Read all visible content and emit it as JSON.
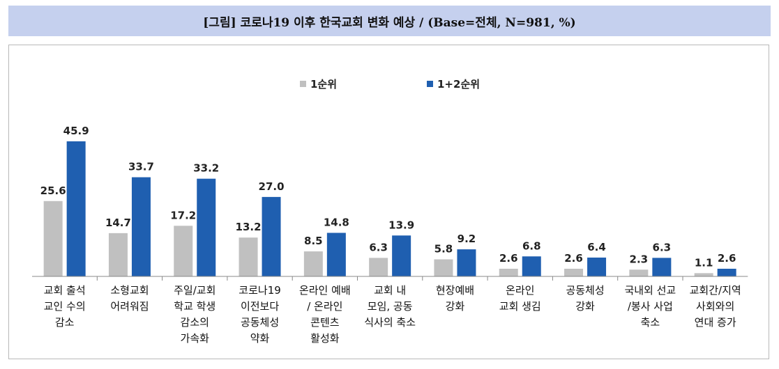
{
  "title": "[그림] 코로나19 이후 한국교회 변화 예상 / (Base=전체, N=981, %)",
  "chart_data": {
    "type": "bar",
    "categories": [
      [
        "교회 출석",
        "교인 수의",
        "감소"
      ],
      [
        "소형교회",
        "어려워짐"
      ],
      [
        "주일/교회",
        "학교 학생",
        "감소의",
        "가속화"
      ],
      [
        "코로나19",
        "이전보다",
        "공동체성",
        "약화"
      ],
      [
        "온라인 예배",
        "/ 온라인",
        "콘텐츠",
        "활성화"
      ],
      [
        "교회 내",
        "모임, 공동",
        "식사의 축소"
      ],
      [
        "현장예배",
        "강화"
      ],
      [
        "온라인",
        "교회 생김"
      ],
      [
        "공동체성",
        "강화"
      ],
      [
        "국내외 선교",
        "/봉사 사업",
        "축소"
      ],
      [
        "교회간/지역",
        "사회와의",
        "연대 증가"
      ]
    ],
    "series": [
      {
        "name": "1순위",
        "color": "#c0c0c0",
        "values": [
          25.6,
          14.7,
          17.2,
          13.2,
          8.5,
          6.3,
          5.8,
          2.6,
          2.6,
          2.3,
          1.1
        ]
      },
      {
        "name": "1+2순위",
        "color": "#1f5fb0",
        "values": [
          45.9,
          33.7,
          33.2,
          27.0,
          14.8,
          13.9,
          9.2,
          6.8,
          6.4,
          6.3,
          2.6
        ]
      }
    ],
    "ylim": [
      0,
      50
    ],
    "grid": false,
    "legend": "top-center"
  }
}
